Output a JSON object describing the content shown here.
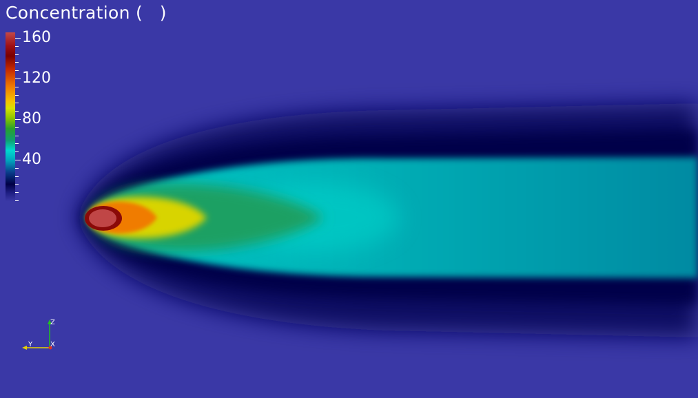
{
  "scalar_bar": {
    "title": "Concentration (   )",
    "labels": [
      "160",
      "120",
      "80",
      "40"
    ]
  },
  "orientation_axes": {
    "z_label": "Z",
    "y_label": "Y",
    "x_label": "X"
  },
  "colors": {
    "background": "#3a38a6",
    "z_axis": "#22c022",
    "y_axis": "#e8d000",
    "x_axis": "#e03020"
  }
}
